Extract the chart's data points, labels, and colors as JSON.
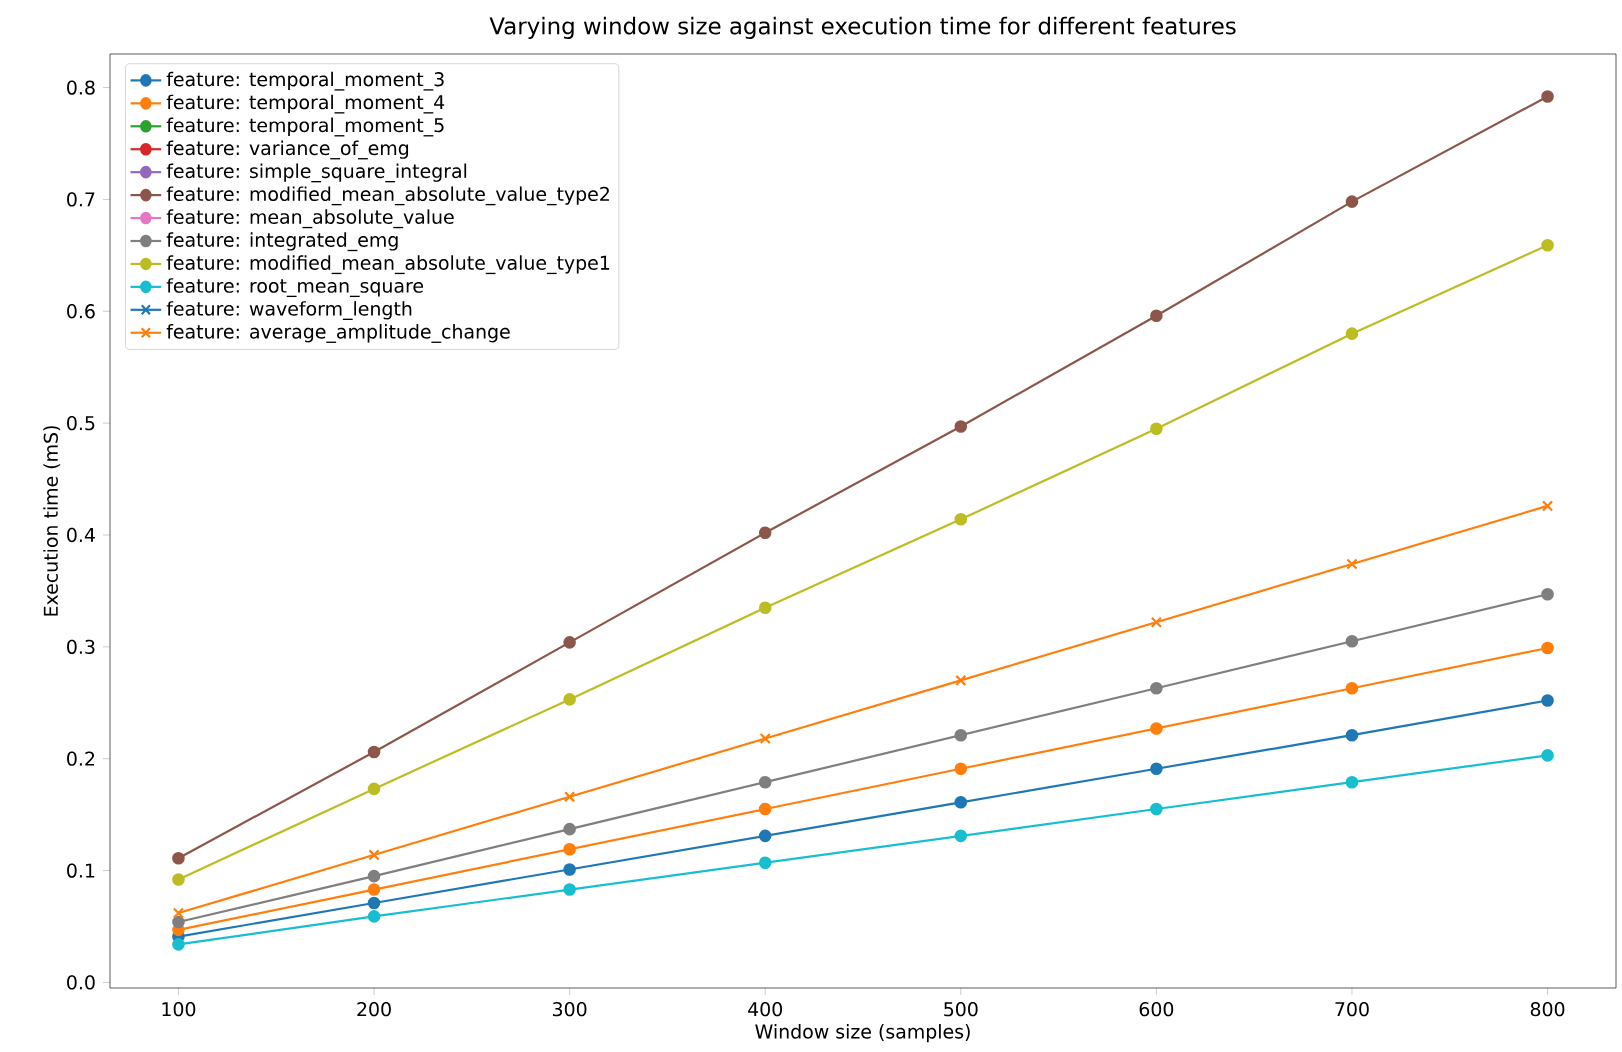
{
  "chart_data": {
    "type": "line",
    "title": "Varying window size against execution time for different features",
    "xlabel": "Window size (samples)",
    "ylabel": "Execution time (mS)",
    "x": [
      100,
      200,
      300,
      400,
      500,
      600,
      700,
      800
    ],
    "xlim": [
      65,
      835
    ],
    "ylim": [
      -0.005,
      0.83
    ],
    "xticks": [
      100,
      200,
      300,
      400,
      500,
      600,
      700,
      800
    ],
    "yticks": [
      {
        "value": 0,
        "label": "0.0"
      },
      0.1,
      0.2,
      0.3,
      0.4,
      0.5,
      0.6,
      0.7,
      0.8
    ],
    "grid": false,
    "legend": "top left",
    "marker": "circle",
    "line_style": "solid",
    "series": [
      {
        "name": "feature: temporal_moment_3",
        "color": "#1f77b4",
        "values": [
          0.041,
          0.071,
          0.101,
          0.131,
          0.161,
          0.191,
          0.221,
          0.252
        ]
      },
      {
        "name": "feature: temporal_moment_4",
        "color": "#ff7f0e",
        "values": [
          0.047,
          0.083,
          0.119,
          0.155,
          0.191,
          0.227,
          0.263,
          0.299
        ]
      },
      {
        "name": "feature: temporal_moment_5",
        "color": "#2ca02c",
        "values": [
          null,
          null,
          null,
          null,
          null,
          null,
          null,
          null
        ]
      },
      {
        "name": "feature: variance_of_emg",
        "color": "#d62728",
        "values": [
          null,
          null,
          null,
          null,
          null,
          null,
          null,
          null
        ]
      },
      {
        "name": "feature: simple_square_integral",
        "color": "#9467bd",
        "values": [
          null,
          null,
          null,
          null,
          null,
          null,
          null,
          null
        ]
      },
      {
        "name": "feature: modified_mean_absolute_value_type2",
        "color": "#8c564b",
        "values": [
          0.111,
          0.206,
          0.304,
          0.402,
          0.497,
          0.596,
          0.698,
          0.792
        ]
      },
      {
        "name": "feature: mean_absolute_value",
        "color": "#e377c2",
        "values": [
          null,
          null,
          null,
          null,
          null,
          null,
          null,
          null
        ]
      },
      {
        "name": "feature: integrated_emg",
        "color": "#7f7f7f",
        "values": [
          0.054,
          0.095,
          0.137,
          0.179,
          0.221,
          0.263,
          0.305,
          0.347
        ]
      },
      {
        "name": "feature: modified_mean_absolute_value_type1",
        "color": "#bcbd22",
        "values": [
          0.092,
          0.173,
          0.253,
          0.335,
          0.414,
          0.495,
          0.58,
          0.659
        ]
      },
      {
        "name": "feature: root_mean_square",
        "color": "#17becf",
        "values": [
          0.034,
          0.059,
          0.083,
          0.107,
          0.131,
          0.155,
          0.179,
          0.203
        ]
      },
      {
        "name": "feature: waveform_length",
        "color": "#1f77b4",
        "marker": "cross",
        "values": [
          null,
          null,
          null,
          null,
          null,
          null,
          null,
          null
        ]
      },
      {
        "name": "feature: average_amplitude_change",
        "color": "#ff7f0e",
        "marker": "cross",
        "values": [
          0.062,
          0.114,
          0.166,
          0.218,
          0.27,
          0.322,
          0.374,
          0.426
        ]
      }
    ]
  }
}
